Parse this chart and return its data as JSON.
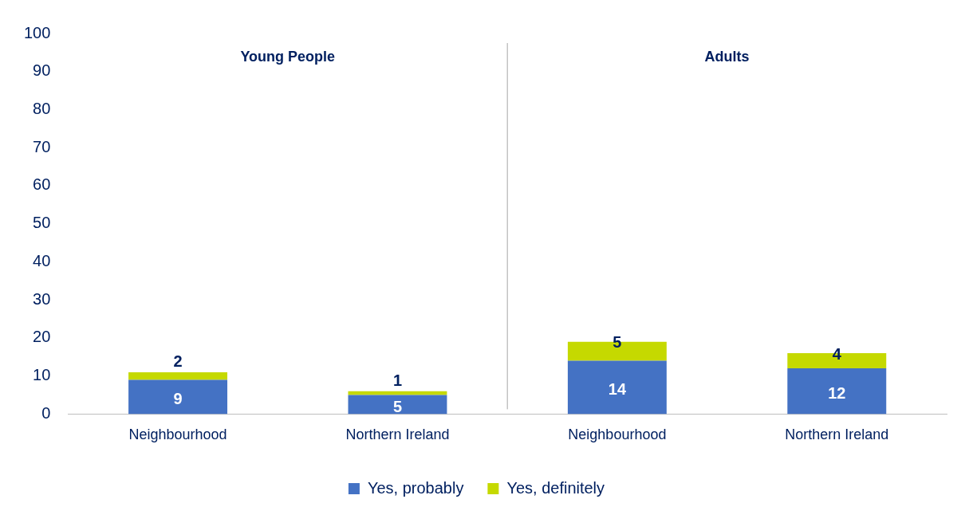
{
  "chart_data": {
    "type": "bar",
    "stacked": true,
    "categories": [
      "Neighbourhood",
      "Northern Ireland",
      "Neighbourhood",
      "Northern Ireland"
    ],
    "series": [
      {
        "name": "Yes, probably",
        "color": "#4472c4",
        "values": [
          9,
          5,
          14,
          12
        ]
      },
      {
        "name": "Yes, definitely",
        "color": "#c5d900",
        "values": [
          2,
          1,
          5,
          4
        ]
      }
    ],
    "ylim": [
      0,
      100
    ],
    "yticks": [
      0,
      10,
      20,
      30,
      40,
      50,
      60,
      70,
      80,
      90,
      100
    ],
    "grid": false,
    "legend": "bottom",
    "data_labels": true,
    "annotations": [
      "Young People",
      "Adults"
    ]
  }
}
